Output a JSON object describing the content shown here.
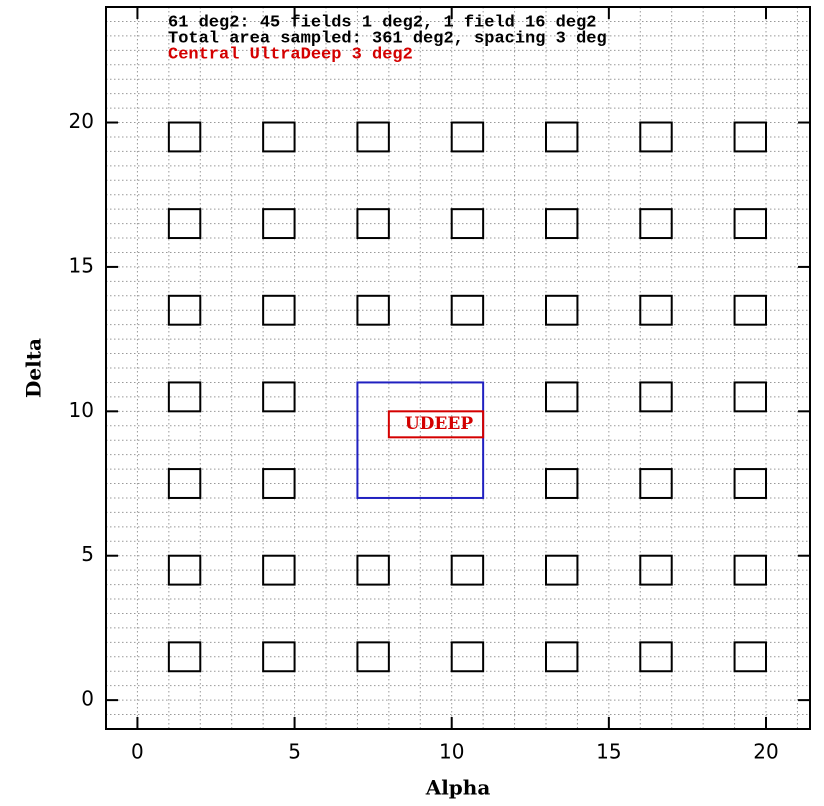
{
  "chart_data": {
    "type": "fields",
    "annotations": [
      {
        "text": "61 deg2: 45 fields 1 deg2, 1 field 16 deg2",
        "color": "#000000"
      },
      {
        "text": "Total area sampled: 361 deg2, spacing 3 deg",
        "color": "#000000"
      },
      {
        "text": "Central UltraDeep 3 deg2",
        "color": "#d40000"
      }
    ],
    "xlabel": "Alpha",
    "ylabel": "Delta",
    "xlim": [
      -1,
      21.4
    ],
    "ylim": [
      -1,
      24
    ],
    "xticks": [
      0,
      5,
      10,
      15,
      20
    ],
    "yticks": [
      0,
      5,
      10,
      15,
      20
    ],
    "grid": true,
    "minor_step": [
      1,
      0.5
    ],
    "fields": {
      "size": 1,
      "color": "#000000",
      "x": [
        1.5,
        4.5,
        7.5,
        10.5,
        13.5,
        16.5,
        19.5,
        1.5,
        4.5,
        7.5,
        10.5,
        13.5,
        16.5,
        19.5,
        1.5,
        4.5,
        13.5,
        16.5,
        19.5,
        1.5,
        4.5,
        13.5,
        16.5,
        19.5,
        1.5,
        4.5,
        7.5,
        10.5,
        13.5,
        16.5,
        19.5,
        1.5,
        4.5,
        7.5,
        10.5,
        13.5,
        16.5,
        19.5,
        1.5,
        4.5,
        7.5,
        10.5,
        13.5,
        16.5,
        19.5
      ],
      "y": [
        1.5,
        1.5,
        1.5,
        1.5,
        1.5,
        1.5,
        1.5,
        4.5,
        4.5,
        4.5,
        4.5,
        4.5,
        4.5,
        4.5,
        7.5,
        7.5,
        7.5,
        7.5,
        7.5,
        10.5,
        10.5,
        10.5,
        10.5,
        10.5,
        13.5,
        13.5,
        13.5,
        13.5,
        13.5,
        13.5,
        13.5,
        16.5,
        16.5,
        16.5,
        16.5,
        16.5,
        16.5,
        16.5,
        19.5,
        19.5,
        19.5,
        19.5,
        19.5,
        19.5,
        19.5
      ]
    },
    "regions": [
      {
        "x": [
          7,
          11
        ],
        "y": [
          7,
          11
        ],
        "color": "#2020c0"
      },
      {
        "x": [
          8,
          11
        ],
        "y": [
          9.1,
          10
        ],
        "color": "#d40000",
        "label": "UDEEP"
      }
    ]
  }
}
